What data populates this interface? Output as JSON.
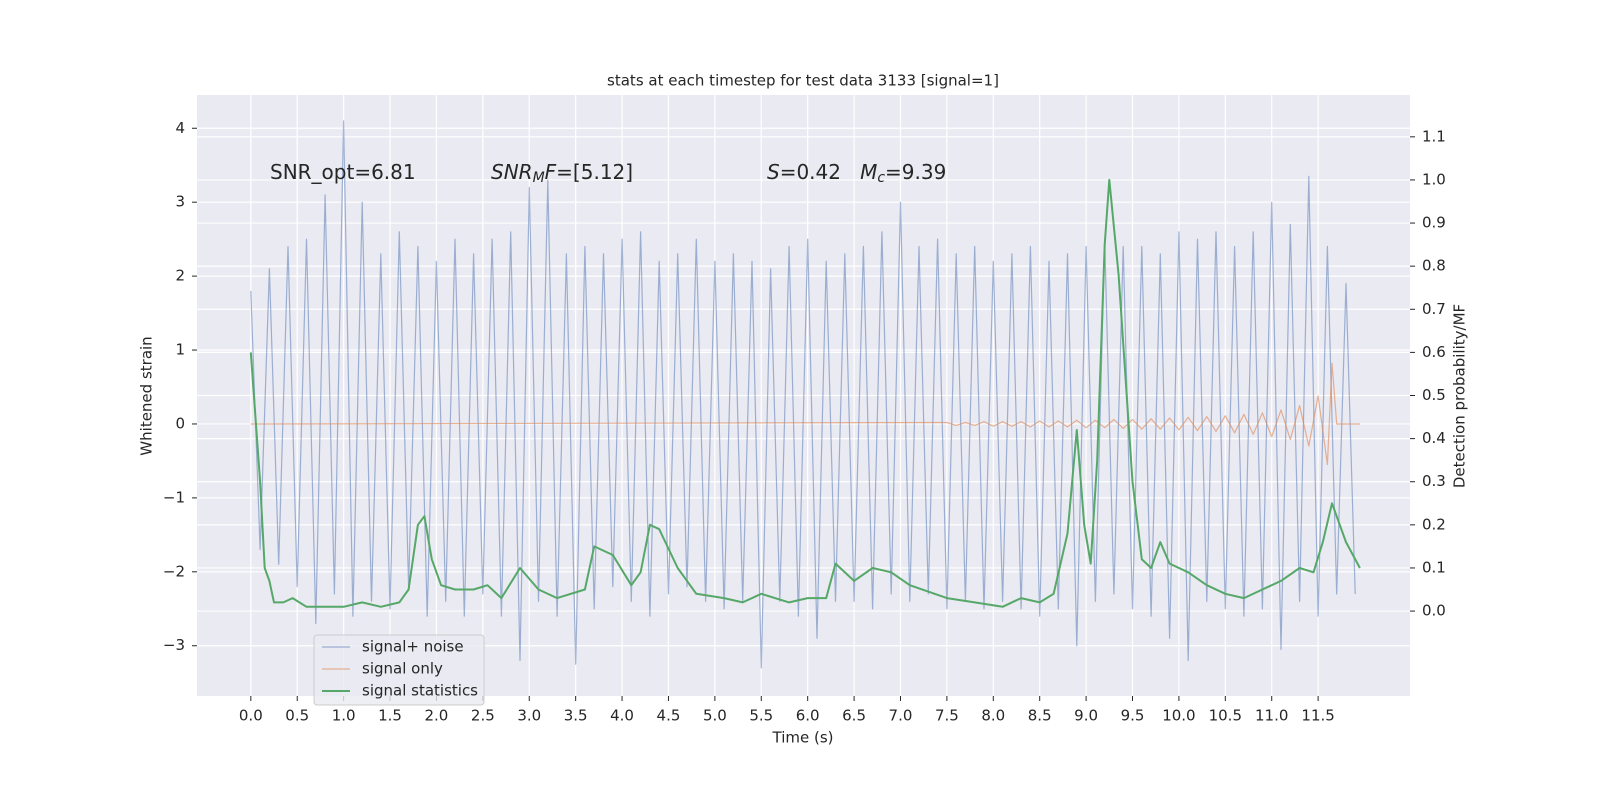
{
  "chart_data": {
    "type": "line",
    "title": "stats at each timestep for test data 3133 [signal=1]",
    "xlabel": "Time (s)",
    "ylabel": "Whitened strain",
    "y2label": "Detection probability/MF",
    "annotations": [
      [
        {
          "text": "SNR_opt=6.81"
        }
      ],
      [
        {
          "text": "SNR",
          "italic": true
        },
        {
          "text": "M",
          "italic": true,
          "sub": true
        },
        {
          "text": "F",
          "italic": true
        },
        {
          "text": "=[5.12]"
        }
      ],
      [
        {
          "text": "S",
          "italic": true
        },
        {
          "text": "=0.42   "
        },
        {
          "text": "M",
          "italic": true
        },
        {
          "text": "c",
          "italic": true,
          "sub": true
        },
        {
          "text": "=9.39"
        }
      ]
    ],
    "xlim": [
      -0.58,
      12.49
    ],
    "ylim": [
      -3.68,
      4.45
    ],
    "y2lim": [
      -0.197,
      1.197
    ],
    "xticks": [
      {
        "value": 0,
        "label": "0.0"
      },
      {
        "value": 0.5,
        "label": "0.5"
      },
      {
        "value": 1,
        "label": "1.0"
      },
      {
        "value": 1.5,
        "label": "1.5"
      },
      {
        "value": 2,
        "label": "2.0"
      },
      {
        "value": 2.5,
        "label": "2.5"
      },
      {
        "value": 3,
        "label": "3.0"
      },
      {
        "value": 3.5,
        "label": "3.5"
      },
      {
        "value": 4,
        "label": "4.0"
      },
      {
        "value": 4.5,
        "label": "4.5"
      },
      {
        "value": 5,
        "label": "5.0"
      },
      {
        "value": 5.5,
        "label": "5.5"
      },
      {
        "value": 6,
        "label": "6.0"
      },
      {
        "value": 6.5,
        "label": "6.5"
      },
      {
        "value": 7,
        "label": "7.0"
      },
      {
        "value": 7.5,
        "label": "7.5"
      },
      {
        "value": 8,
        "label": "8.0"
      },
      {
        "value": 8.5,
        "label": "8.5"
      },
      {
        "value": 9,
        "label": "9.0"
      },
      {
        "value": 9.5,
        "label": "9.5"
      },
      {
        "value": 10,
        "label": "10.0"
      },
      {
        "value": 10.5,
        "label": "10.5"
      },
      {
        "value": 11,
        "label": "11.0"
      },
      {
        "value": 11.5,
        "label": "11.5"
      }
    ],
    "yticks": [
      {
        "value": -3,
        "label": "−3"
      },
      {
        "value": -2,
        "label": "−2"
      },
      {
        "value": -1,
        "label": "−1"
      },
      0,
      1,
      2,
      3,
      4
    ],
    "y2ticks": [
      {
        "value": 0,
        "label": "0.0"
      },
      {
        "value": 0.1,
        "label": "0.1"
      },
      {
        "value": 0.2,
        "label": "0.2"
      },
      {
        "value": 0.3,
        "label": "0.3"
      },
      {
        "value": 0.4,
        "label": "0.4"
      },
      {
        "value": 0.5,
        "label": "0.5"
      },
      {
        "value": 0.6,
        "label": "0.6"
      },
      {
        "value": 0.7,
        "label": "0.7"
      },
      {
        "value": 0.8,
        "label": "0.8"
      },
      {
        "value": 0.9,
        "label": "0.9"
      },
      {
        "value": 1,
        "label": "1.0"
      },
      {
        "value": 1.1,
        "label": "1.1"
      }
    ],
    "grid": true,
    "legend": "lower left",
    "series": [
      {
        "name": "signal+ noise",
        "color": "#4c72b0",
        "x": [
          0,
          0.1,
          0.2,
          0.3,
          0.4,
          0.5,
          0.6,
          0.7,
          0.8,
          0.9,
          1,
          1.1,
          1.2,
          1.3,
          1.4,
          1.5,
          1.6,
          1.7,
          1.8,
          1.9,
          2,
          2.1,
          2.2,
          2.3,
          2.4,
          2.5,
          2.6,
          2.7,
          2.8,
          2.9,
          3,
          3.1,
          3.2,
          3.3,
          3.4,
          3.5,
          3.6,
          3.7,
          3.8,
          3.9,
          4,
          4.1,
          4.2,
          4.3,
          4.4,
          4.5,
          4.6,
          4.7,
          4.8,
          4.9,
          5,
          5.1,
          5.2,
          5.3,
          5.4,
          5.5,
          5.6,
          5.7,
          5.8,
          5.9,
          6,
          6.1,
          6.2,
          6.3,
          6.4,
          6.5,
          6.6,
          6.7,
          6.8,
          6.9,
          7,
          7.1,
          7.2,
          7.3,
          7.4,
          7.5,
          7.6,
          7.7,
          7.8,
          7.9,
          8,
          8.1,
          8.2,
          8.3,
          8.4,
          8.5,
          8.6,
          8.7,
          8.8,
          8.9,
          9,
          9.1,
          9.2,
          9.3,
          9.4,
          9.5,
          9.6,
          9.7,
          9.8,
          9.9,
          10,
          10.1,
          10.2,
          10.3,
          10.4,
          10.5,
          10.6,
          10.7,
          10.8,
          10.9,
          11,
          11.1,
          11.2,
          11.3,
          11.4,
          11.5,
          11.6,
          11.7,
          11.8,
          11.9
        ],
        "values": [
          1.8,
          -1.7,
          2.1,
          -1.9,
          2.4,
          -2.2,
          2.5,
          -2.7,
          3.1,
          -2.3,
          4.1,
          -2.6,
          3.0,
          -2.4,
          2.3,
          -2.5,
          2.6,
          -2.2,
          2.4,
          -2.6,
          2.2,
          -2.4,
          2.5,
          -2.6,
          2.3,
          -2.3,
          2.5,
          -2.6,
          2.6,
          -3.2,
          3.2,
          -2.4,
          3.3,
          -2.6,
          2.3,
          -3.25,
          2.4,
          -2.5,
          2.3,
          -2.2,
          2.5,
          -2.4,
          2.6,
          -2.6,
          2.2,
          -2.3,
          2.3,
          -2.2,
          2.5,
          -2.4,
          2.2,
          -2.5,
          2.3,
          -2.4,
          2.2,
          -3.3,
          2.1,
          -2.4,
          2.4,
          -2.6,
          2.5,
          -2.9,
          2.2,
          -2.4,
          2.3,
          -2.4,
          2.4,
          -2.5,
          2.6,
          -2.3,
          3.0,
          -2.4,
          2.4,
          -2.3,
          2.5,
          -2.5,
          2.3,
          -2.4,
          2.4,
          -2.5,
          2.2,
          -2.4,
          2.3,
          -2.5,
          2.4,
          -2.6,
          2.2,
          -2.5,
          2.3,
          -3.0,
          2.4,
          -2.4,
          2.5,
          -2.3,
          2.4,
          -2.5,
          2.4,
          -2.6,
          2.3,
          -2.9,
          2.6,
          -3.2,
          2.5,
          -2.4,
          2.6,
          -2.5,
          2.4,
          -2.6,
          2.6,
          -2.5,
          3.0,
          -3.05,
          2.7,
          -2.4,
          3.35,
          -2.6,
          2.4,
          -2.3,
          1.9,
          -2.3
        ]
      },
      {
        "name": "signal only",
        "color": "#dd8452",
        "x": [
          0,
          7.5,
          7.6,
          7.7,
          7.8,
          7.9,
          8,
          8.1,
          8.2,
          8.3,
          8.4,
          8.5,
          8.6,
          8.7,
          8.8,
          8.9,
          9,
          9.1,
          9.2,
          9.3,
          9.4,
          9.5,
          9.6,
          9.7,
          9.8,
          9.9,
          10,
          10.1,
          10.2,
          10.3,
          10.4,
          10.5,
          10.6,
          10.7,
          10.8,
          10.9,
          11,
          11.1,
          11.2,
          11.3,
          11.4,
          11.5,
          11.6,
          11.65,
          11.7,
          11.95
        ],
        "values": [
          0,
          0.02,
          -0.02,
          0.02,
          -0.02,
          0.03,
          -0.03,
          0.03,
          -0.03,
          0.03,
          -0.04,
          0.04,
          -0.04,
          0.04,
          -0.04,
          0.05,
          -0.05,
          0.05,
          -0.05,
          0.06,
          -0.06,
          0.06,
          -0.07,
          0.07,
          -0.07,
          0.08,
          -0.08,
          0.09,
          -0.09,
          0.1,
          -0.1,
          0.11,
          -0.12,
          0.13,
          -0.14,
          0.15,
          -0.17,
          0.19,
          -0.21,
          0.25,
          -0.3,
          0.38,
          -0.55,
          0.82,
          0,
          0
        ]
      },
      {
        "name": "signal statistics",
        "color": "#55a868",
        "axis": "y2",
        "x": [
          0,
          0.1,
          0.15,
          0.2,
          0.25,
          0.35,
          0.45,
          0.6,
          0.8,
          1,
          1.2,
          1.4,
          1.6,
          1.7,
          1.8,
          1.87,
          1.95,
          2.05,
          2.2,
          2.4,
          2.55,
          2.7,
          2.9,
          3.1,
          3.3,
          3.6,
          3.7,
          3.9,
          4.1,
          4.2,
          4.3,
          4.4,
          4.6,
          4.8,
          5.1,
          5.3,
          5.5,
          5.8,
          6,
          6.2,
          6.3,
          6.5,
          6.7,
          6.9,
          7.1,
          7.5,
          7.8,
          8.1,
          8.3,
          8.5,
          8.65,
          8.8,
          8.9,
          8.98,
          9.05,
          9.12,
          9.2,
          9.25,
          9.35,
          9.5,
          9.6,
          9.7,
          9.8,
          9.9,
          10.1,
          10.3,
          10.5,
          10.7,
          10.9,
          11.1,
          11.3,
          11.45,
          11.55,
          11.65,
          11.8,
          11.95
        ],
        "values": [
          0.6,
          0.3,
          0.1,
          0.07,
          0.02,
          0.02,
          0.03,
          0.01,
          0.01,
          0.01,
          0.02,
          0.01,
          0.02,
          0.05,
          0.2,
          0.22,
          0.12,
          0.06,
          0.05,
          0.05,
          0.06,
          0.03,
          0.1,
          0.05,
          0.03,
          0.05,
          0.15,
          0.13,
          0.06,
          0.09,
          0.2,
          0.19,
          0.1,
          0.04,
          0.03,
          0.02,
          0.04,
          0.02,
          0.03,
          0.03,
          0.11,
          0.07,
          0.1,
          0.09,
          0.06,
          0.03,
          0.02,
          0.01,
          0.03,
          0.02,
          0.04,
          0.18,
          0.42,
          0.2,
          0.11,
          0.35,
          0.85,
          1.0,
          0.78,
          0.3,
          0.12,
          0.1,
          0.16,
          0.11,
          0.09,
          0.06,
          0.04,
          0.03,
          0.05,
          0.07,
          0.1,
          0.09,
          0.16,
          0.25,
          0.16,
          0.1
        ]
      }
    ]
  }
}
